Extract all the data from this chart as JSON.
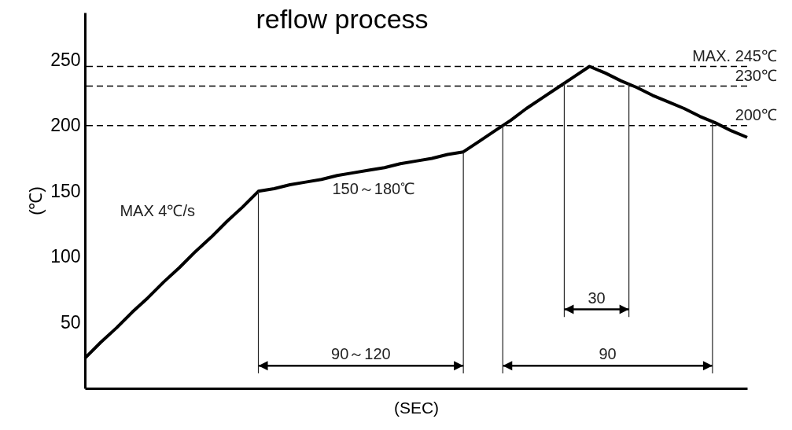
{
  "chart_data": {
    "type": "line",
    "title": "reflow process",
    "xlabel": "(SEC)",
    "ylabel": "(℃)",
    "categories": [
      null,
      null,
      null,
      null,
      null,
      null,
      null,
      null,
      null,
      null,
      null,
      null,
      null,
      null,
      null,
      null,
      null,
      null,
      null,
      null,
      null,
      null,
      null,
      null,
      null,
      null,
      null,
      null,
      null,
      null,
      null,
      null,
      null,
      null,
      null,
      null,
      null,
      null,
      null,
      null,
      null,
      null,
      null
    ],
    "series": [
      {
        "color": "#000000",
        "values": [
          23,
          35,
          46,
          58,
          69,
          81,
          92,
          104,
          115,
          127,
          138,
          150,
          152,
          155,
          157,
          159,
          162,
          164,
          166,
          168,
          171,
          173,
          175,
          178,
          180,
          188,
          196,
          204,
          213,
          221,
          229,
          237,
          245,
          240,
          234,
          229,
          223,
          218,
          213,
          207,
          202,
          196,
          191
        ]
      }
    ],
    "ylim": [
      0,
      286
    ],
    "yticks": [
      50,
      100,
      150,
      200,
      250
    ],
    "tick_labels": "y",
    "grid": false,
    "marker": "none",
    "line_style": "solid",
    "ref_lines": [
      {
        "axis": "y",
        "value": 245,
        "label": "MAX. 245℃",
        "line_style": "dashed",
        "color": "#000000"
      },
      {
        "axis": "y",
        "value": 230,
        "label": "230℃",
        "line_style": "dashed",
        "color": "#000000"
      },
      {
        "axis": "y",
        "value": 200,
        "label": "200℃",
        "line_style": "dashed",
        "color": "#000000"
      }
    ],
    "annotations": [
      "MAX 4℃/s",
      "150～180℃",
      "90～120",
      "90",
      "30"
    ]
  }
}
